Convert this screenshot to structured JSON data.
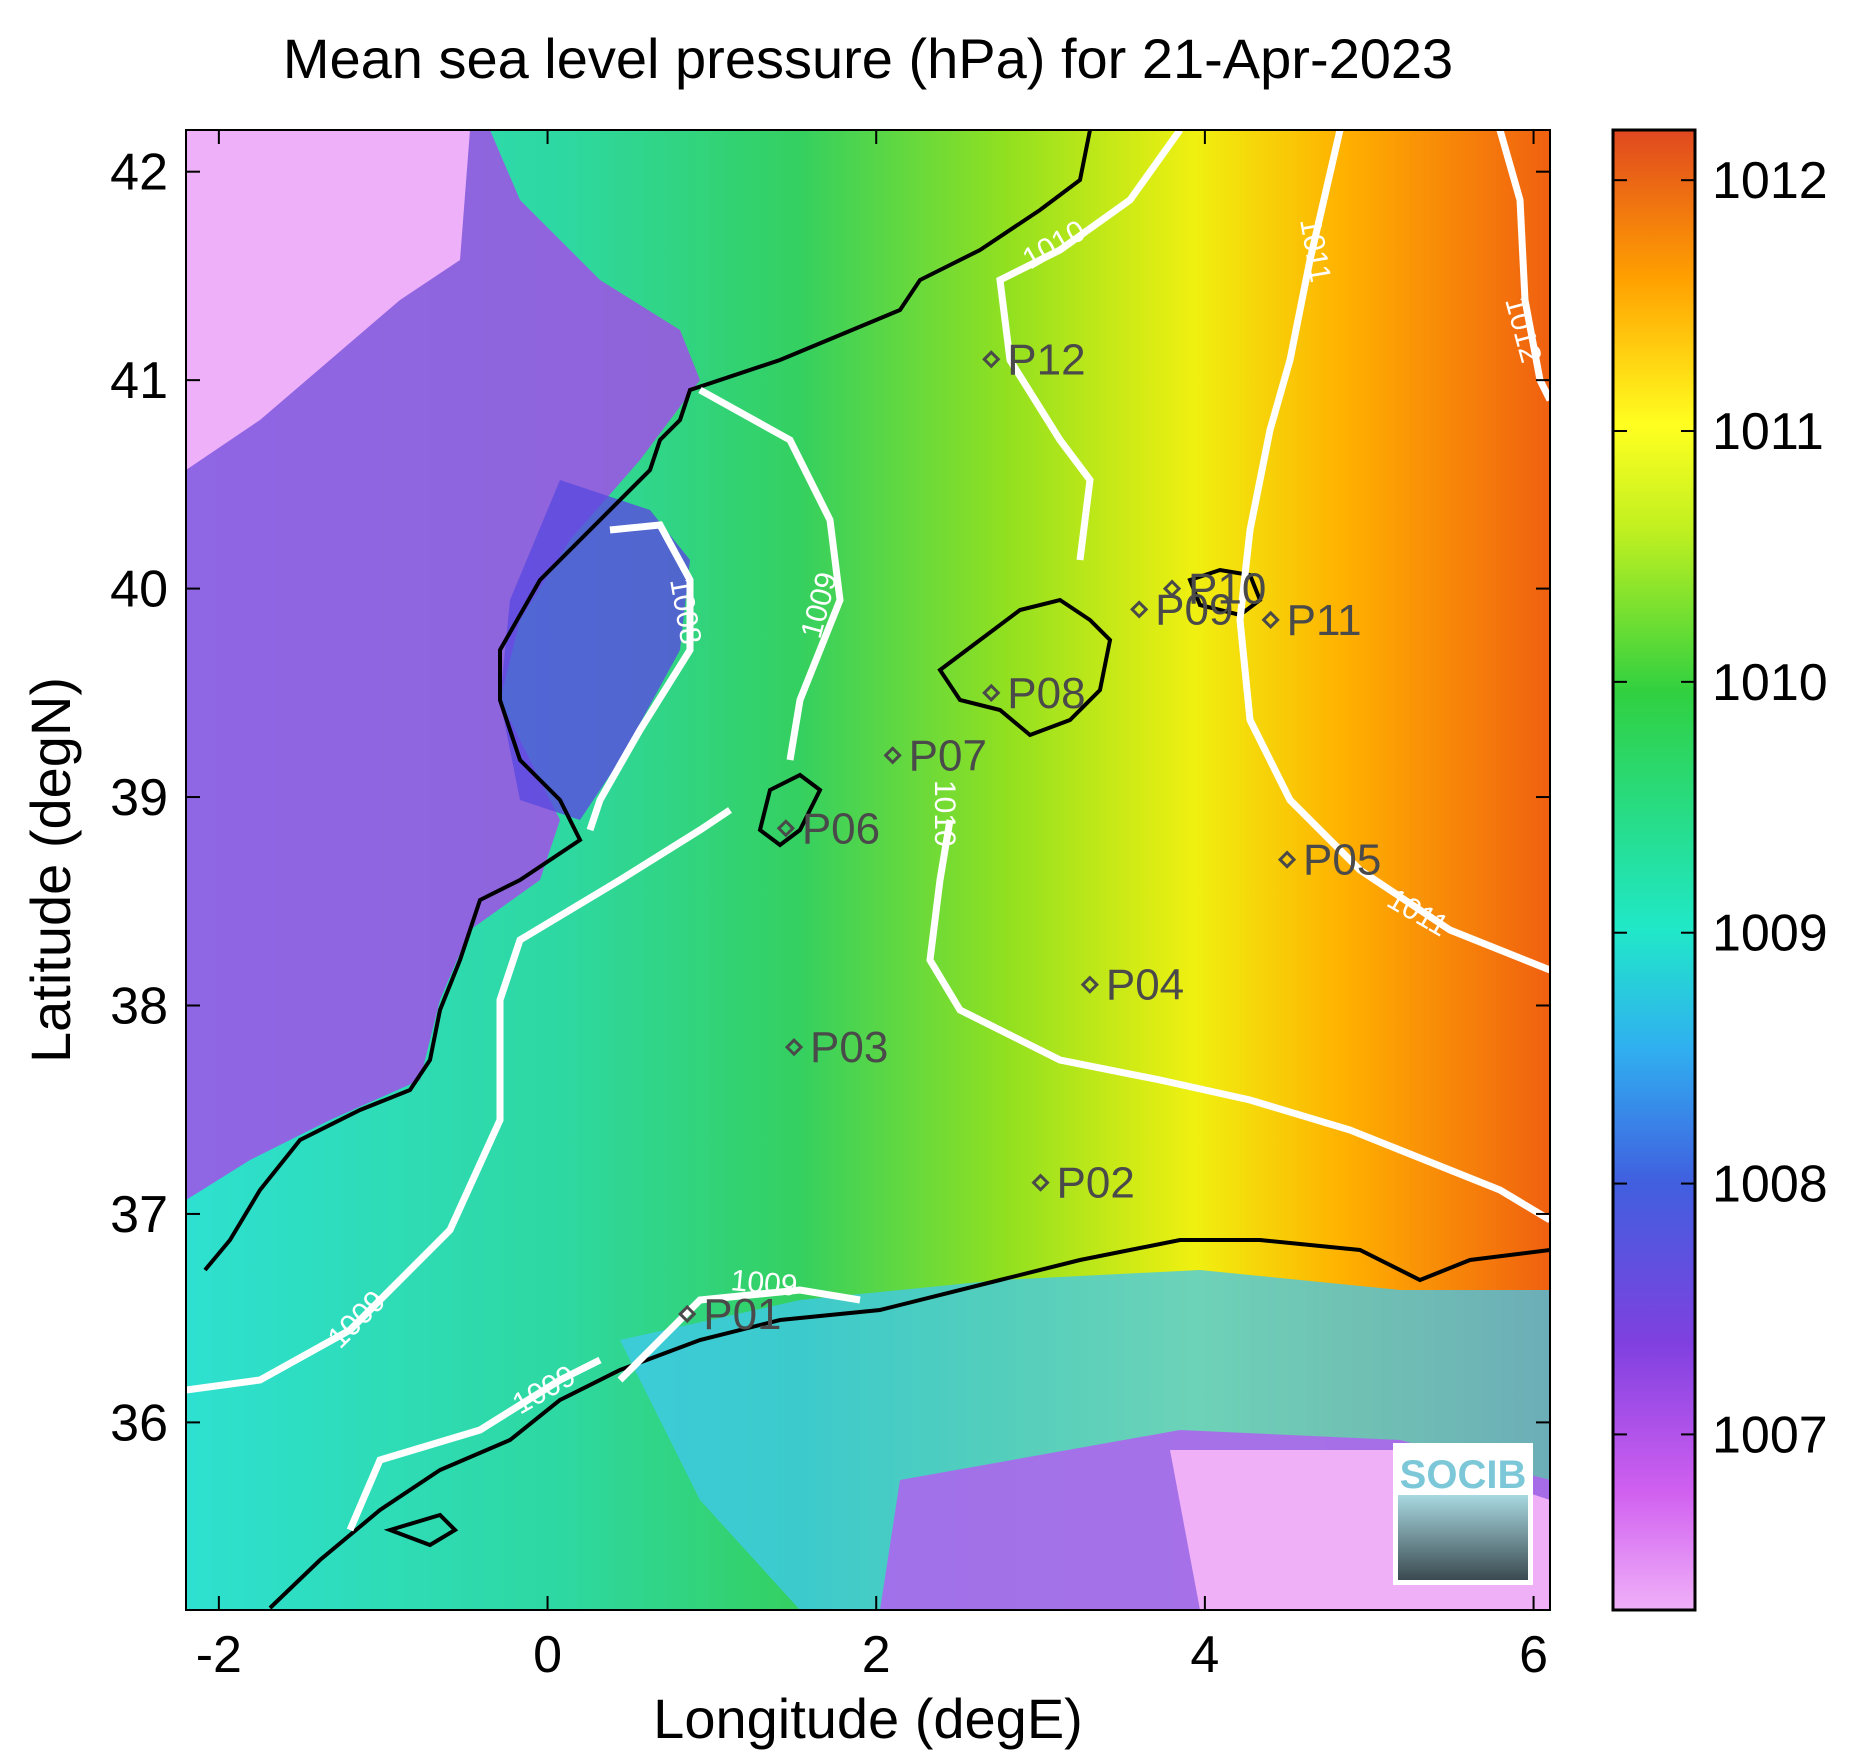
{
  "title": "Mean sea level pressure (hPa) for 21-Apr-2023",
  "xlabel": "Longitude (degE)",
  "ylabel": "Latitude (degN)",
  "map": {
    "xlim": [
      -2.2,
      6.1
    ],
    "ylim": [
      35.1,
      42.2
    ],
    "x_ticks": [
      -2,
      0,
      2,
      4,
      6
    ],
    "x_tick_labels": [
      "-2",
      "0",
      "2",
      "4",
      "6"
    ],
    "y_ticks": [
      36,
      37,
      38,
      39,
      40,
      41,
      42
    ],
    "y_tick_labels": [
      "36",
      "37",
      "38",
      "39",
      "40",
      "41",
      "42"
    ]
  },
  "colorbar": {
    "range": [
      1006.3,
      1012.2
    ],
    "ticks": [
      1007,
      1008,
      1009,
      1010,
      1011,
      1012
    ],
    "tick_labels": [
      "1007",
      "1008",
      "1009",
      "1010",
      "1011",
      "1012"
    ]
  },
  "stations": [
    {
      "name": "P01",
      "lon": 0.85,
      "lat": 36.52
    },
    {
      "name": "P02",
      "lon": 3.0,
      "lat": 37.15
    },
    {
      "name": "P03",
      "lon": 1.5,
      "lat": 37.8
    },
    {
      "name": "P04",
      "lon": 3.3,
      "lat": 38.1
    },
    {
      "name": "P05",
      "lon": 4.5,
      "lat": 38.7
    },
    {
      "name": "P06",
      "lon": 1.45,
      "lat": 38.85
    },
    {
      "name": "P07",
      "lon": 2.1,
      "lat": 39.2
    },
    {
      "name": "P08",
      "lon": 2.7,
      "lat": 39.5
    },
    {
      "name": "P09",
      "lon": 3.6,
      "lat": 39.9
    },
    {
      "name": "P10",
      "lon": 3.8,
      "lat": 40.0
    },
    {
      "name": "P11",
      "lon": 4.4,
      "lat": 39.85
    },
    {
      "name": "P12",
      "lon": 2.7,
      "lat": 41.1
    }
  ],
  "contour_labels": [
    "1008",
    "1009",
    "1009",
    "1009",
    "1009",
    "1010",
    "1010",
    "1011",
    "1011",
    "1012"
  ],
  "logo_text": "SOCIB"
}
